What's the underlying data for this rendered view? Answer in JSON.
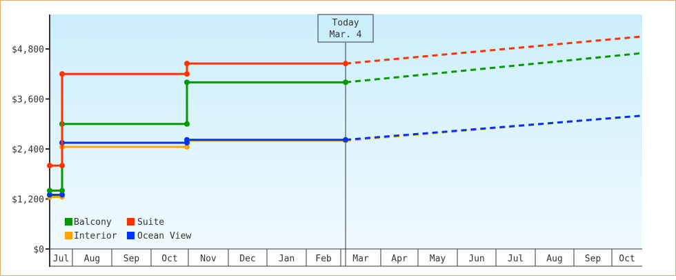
{
  "chart_data": {
    "type": "line",
    "title": "",
    "xlabel": "",
    "ylabel": "",
    "ylim": [
      0,
      5600
    ],
    "y_ticks": [
      "$0",
      "$1,200",
      "$2,400",
      "$3,600",
      "$4,800"
    ],
    "y_tick_values": [
      0,
      1200,
      2400,
      3600,
      4800
    ],
    "x_ticks": [
      "Jul",
      "Aug",
      "Sep",
      "Oct",
      "Nov",
      "Dec",
      "Jan",
      "Feb",
      "Mar",
      "Apr",
      "May",
      "Jun",
      "Jul",
      "Aug",
      "Sep",
      "Oct"
    ],
    "grid": false,
    "legend_position": "lower-left inside",
    "today_marker": {
      "line1": "Today",
      "line2": "Mar. 4"
    },
    "series": [
      {
        "name": "Balcony",
        "color": "#009900",
        "points": [
          {
            "date": "early Jul",
            "value": 1400
          },
          {
            "date": "mid Jul",
            "value": 1400
          },
          {
            "date": "mid Jul",
            "value": 3000
          },
          {
            "date": "late Oct",
            "value": 3000
          },
          {
            "date": "late Oct",
            "value": 4000
          },
          {
            "date": "Mar 4",
            "value": 4000
          }
        ],
        "projection_end": {
          "date": "end Oct",
          "value": 4700
        }
      },
      {
        "name": "Suite",
        "color": "#ff3300",
        "points": [
          {
            "date": "early Jul",
            "value": 2000
          },
          {
            "date": "mid Jul",
            "value": 2000
          },
          {
            "date": "mid Jul",
            "value": 4200
          },
          {
            "date": "late Oct",
            "value": 4200
          },
          {
            "date": "late Oct",
            "value": 4450
          },
          {
            "date": "Mar 4",
            "value": 4450
          }
        ],
        "projection_end": {
          "date": "end Oct",
          "value": 5100
        }
      },
      {
        "name": "Interior",
        "color": "#ffa500",
        "points": [
          {
            "date": "early Jul",
            "value": 1250
          },
          {
            "date": "mid Jul",
            "value": 1250
          },
          {
            "date": "mid Jul",
            "value": 2450
          },
          {
            "date": "late Oct",
            "value": 2450
          },
          {
            "date": "late Oct",
            "value": 2600
          },
          {
            "date": "Mar 4",
            "value": 2600
          }
        ],
        "projection_end": {
          "date": "end Oct",
          "value": 3200
        }
      },
      {
        "name": "Ocean View",
        "color": "#0033ff",
        "points": [
          {
            "date": "early Jul",
            "value": 1300
          },
          {
            "date": "mid Jul",
            "value": 1300
          },
          {
            "date": "mid Jul",
            "value": 2550
          },
          {
            "date": "late Oct",
            "value": 2550
          },
          {
            "date": "late Oct",
            "value": 2620
          },
          {
            "date": "Mar 4",
            "value": 2620
          }
        ],
        "projection_end": {
          "date": "end Oct",
          "value": 3200
        }
      }
    ]
  },
  "legend": [
    {
      "label": "Balcony",
      "color": "#009900"
    },
    {
      "label": "Suite",
      "color": "#ff3300"
    },
    {
      "label": "Interior",
      "color": "#ffa500"
    },
    {
      "label": "Ocean View",
      "color": "#0033ff"
    }
  ],
  "colors": {
    "border": "#e8a96a",
    "axis": "#333333",
    "plot_bg_top": "#cbeefb",
    "plot_bg_bottom": "#f0fafe"
  }
}
